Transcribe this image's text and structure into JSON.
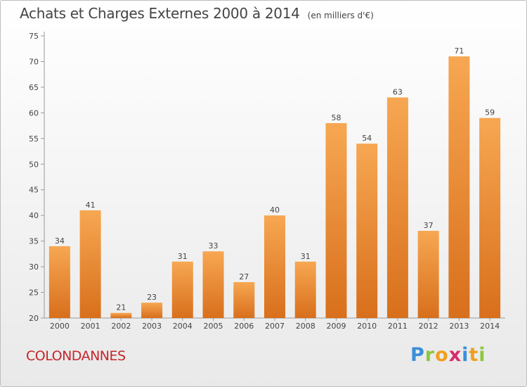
{
  "title": "Achats et Charges Externes 2000 à 2014",
  "unit_note": "(en milliers d'€)",
  "commune": "COLONDANNES",
  "logo": {
    "letters": [
      {
        "ch": "P",
        "color": "#3a8fd8"
      },
      {
        "ch": "r",
        "color": "#8fc640"
      },
      {
        "ch": "o",
        "color": "#f0a020"
      },
      {
        "ch": "x",
        "color": "#d82a6a"
      },
      {
        "ch": "i",
        "color": "#3a8fd8"
      },
      {
        "ch": "t",
        "color": "#f0a020"
      },
      {
        "ch": "i",
        "color": "#8fc640"
      }
    ]
  },
  "chart_data": {
    "type": "bar",
    "title": "Achats et Charges Externes 2000 à 2014",
    "subtitle": "(en milliers d'€)",
    "xlabel": "",
    "ylabel": "",
    "categories": [
      "2000",
      "2001",
      "2002",
      "2003",
      "2004",
      "2005",
      "2006",
      "2007",
      "2008",
      "2009",
      "2010",
      "2011",
      "2012",
      "2013",
      "2014"
    ],
    "values": [
      34,
      41,
      21,
      23,
      31,
      33,
      27,
      40,
      31,
      58,
      54,
      63,
      37,
      71,
      59
    ],
    "ylim": [
      20,
      75
    ],
    "yticks": [
      20,
      25,
      30,
      35,
      40,
      45,
      50,
      55,
      60,
      65,
      70,
      75
    ],
    "grid": false,
    "bar_color_top": "#f7a752",
    "bar_color_bottom": "#d86f1c"
  }
}
